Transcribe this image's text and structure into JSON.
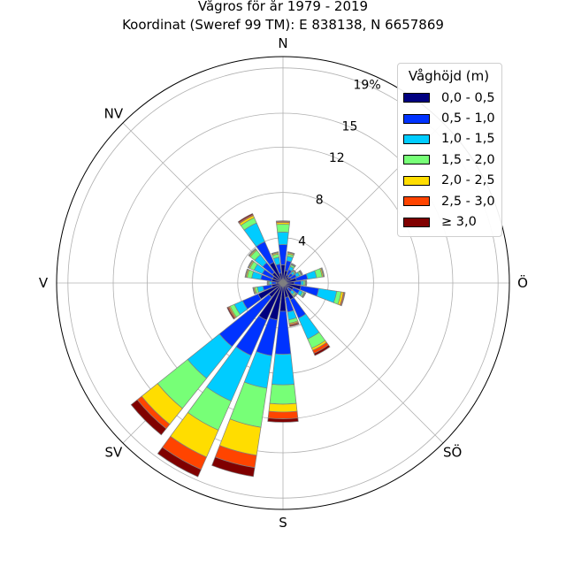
{
  "chart_data": {
    "type": "polar-stacked-bar",
    "title": "Vågros för år 1979 - 2019",
    "subtitle": "Koordinat (Sweref 99 TM): E 838138, N 6657869",
    "direction_labels": [
      "N",
      "NV",
      "V",
      "SV",
      "S",
      "SÖ",
      "Ö"
    ],
    "direction_angles_deg": [
      0,
      315,
      270,
      225,
      180,
      135,
      90
    ],
    "radial_ticks": [
      4,
      8,
      12,
      15,
      19
    ],
    "radial_tick_labels": [
      "4",
      "8",
      "12",
      "15",
      "19%"
    ],
    "rmax": 20,
    "unit": "%",
    "legend_title": "Våghöjd (m)",
    "legend_labels": [
      "0,0 - 0,5",
      "0,5 - 1,0",
      "1,0 - 1,5",
      "1,5 - 2,0",
      "2,0 - 2,5",
      "2,5 - 3,0",
      "≥ 3,0"
    ],
    "colors": [
      "#000080",
      "#0033ff",
      "#00ccff",
      "#77ff77",
      "#ffdd00",
      "#ff4400",
      "#800000"
    ],
    "sectors": [
      {
        "dir_deg": 0,
        "cum": [
          1.6,
          3.4,
          4.5,
          5.2,
          5.35,
          5.45,
          5.5
        ]
      },
      {
        "dir_deg": 15,
        "cum": [
          1.1,
          2.0,
          2.4,
          2.6,
          2.7,
          2.75,
          2.8
        ]
      },
      {
        "dir_deg": 30,
        "cum": [
          0.8,
          1.3,
          1.6,
          1.75,
          1.8,
          1.85,
          1.9
        ]
      },
      {
        "dir_deg": 45,
        "cum": [
          0.7,
          1.1,
          1.3,
          1.4,
          1.45,
          1.5,
          1.5
        ]
      },
      {
        "dir_deg": 60,
        "cum": [
          0.8,
          1.3,
          1.6,
          1.75,
          1.8,
          1.85,
          1.9
        ]
      },
      {
        "dir_deg": 75,
        "cum": [
          1.2,
          2.2,
          3.0,
          3.5,
          3.6,
          3.65,
          3.7
        ]
      },
      {
        "dir_deg": 90,
        "cum": [
          1.0,
          1.6,
          1.8,
          1.95,
          2.0,
          2.05,
          2.1
        ]
      },
      {
        "dir_deg": 105,
        "cum": [
          1.6,
          3.2,
          4.8,
          5.2,
          5.4,
          5.5,
          5.55
        ]
      },
      {
        "dir_deg": 120,
        "cum": [
          1.0,
          1.6,
          1.9,
          2.05,
          2.1,
          2.15,
          2.2
        ]
      },
      {
        "dir_deg": 135,
        "cum": [
          0.6,
          1.0,
          1.3,
          1.45,
          1.5,
          1.55,
          1.6
        ]
      },
      {
        "dir_deg": 150,
        "cum": [
          1.6,
          3.4,
          5.4,
          6.3,
          6.5,
          6.8,
          7.0
        ]
      },
      {
        "dir_deg": 165,
        "cum": [
          1.3,
          2.6,
          3.3,
          3.6,
          3.7,
          3.8,
          3.9
        ]
      },
      {
        "dir_deg": 180,
        "cum": [
          2.5,
          6.3,
          9.0,
          10.7,
          11.4,
          12.0,
          12.3
        ]
      },
      {
        "dir_deg": 195,
        "cum": [
          3.3,
          6.5,
          9.4,
          12.9,
          15.4,
          16.5,
          17.3
        ]
      },
      {
        "dir_deg": 210,
        "cum": [
          3.6,
          7.0,
          11.4,
          14.2,
          16.8,
          18.0,
          18.7
        ]
      },
      {
        "dir_deg": 225,
        "cum": [
          1.6,
          7.2,
          10.8,
          14.2,
          16.0,
          16.5,
          17.2
        ]
      },
      {
        "dir_deg": 240,
        "cum": [
          2.4,
          3.9,
          4.7,
          5.1,
          5.2,
          5.3,
          5.4
        ]
      },
      {
        "dir_deg": 255,
        "cum": [
          1.0,
          1.8,
          2.3,
          2.5,
          2.6,
          2.65,
          2.7
        ]
      },
      {
        "dir_deg": 270,
        "cum": [
          0.6,
          1.0,
          1.2,
          1.3,
          1.35,
          1.4,
          1.4
        ]
      },
      {
        "dir_deg": 285,
        "cum": [
          1.0,
          2.0,
          2.8,
          3.2,
          3.3,
          3.35,
          3.4
        ]
      },
      {
        "dir_deg": 300,
        "cum": [
          1.0,
          2.0,
          2.8,
          3.2,
          3.3,
          3.35,
          3.4
        ]
      },
      {
        "dir_deg": 315,
        "cum": [
          1.2,
          2.3,
          3.2,
          3.7,
          3.8,
          3.85,
          3.9
        ]
      },
      {
        "dir_deg": 330,
        "cum": [
          2.0,
          4.0,
          5.8,
          6.3,
          6.5,
          6.6,
          6.7
        ]
      },
      {
        "dir_deg": 345,
        "cum": [
          0.9,
          1.7,
          2.3,
          2.6,
          2.7,
          2.75,
          2.8
        ]
      }
    ]
  }
}
